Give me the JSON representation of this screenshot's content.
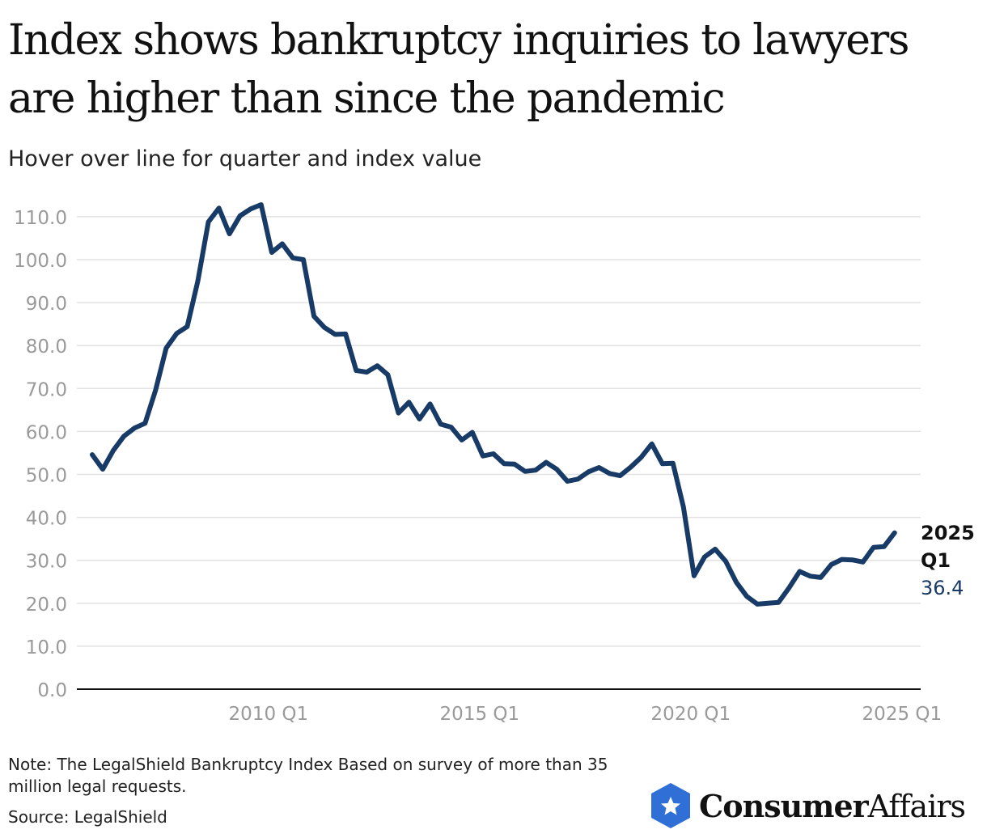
{
  "title": "Index shows bankruptcy inquiries to lawyers are higher than since the pandemic",
  "subtitle": "Hover over line for quarter and index value",
  "note": "Note: The LegalShield Bankruptcy Index Based on survey of more than 35 million legal requests.",
  "source": "Source: LegalShield",
  "logo": {
    "brand_bold": "Consumer",
    "brand_light": "Affairs",
    "icon": "star-shield-icon",
    "icon_color": "#2f6fd6"
  },
  "colors": {
    "line": "#183a66",
    "grid": "#e2e2e2",
    "axis": "#111111",
    "tick": "#9a9a9a"
  },
  "chart_data": {
    "type": "line",
    "title": "Index shows bankruptcy inquiries to lawyers are higher than since the pandemic",
    "xlabel": "",
    "ylabel": "",
    "ylim": [
      0,
      110
    ],
    "yticks": [
      "0.0",
      "10.0",
      "20.0",
      "30.0",
      "40.0",
      "50.0",
      "60.0",
      "70.0",
      "80.0",
      "90.0",
      "100.0",
      "110.0"
    ],
    "xticks": [
      {
        "label": "2010 Q1",
        "index": 17
      },
      {
        "label": "2015 Q1",
        "index": 37
      },
      {
        "label": "2020 Q1",
        "index": 57
      },
      {
        "label": "2025 Q1",
        "index": 77
      }
    ],
    "series": [
      {
        "name": "LegalShield Bankruptcy Index",
        "start": "2006 Q1",
        "end": "2025 Q1",
        "values": [
          54.6,
          51.2,
          55.6,
          58.9,
          60.8,
          61.9,
          69.6,
          79.4,
          82.8,
          84.4,
          95.0,
          108.8,
          112.0,
          106.0,
          110.2,
          111.8,
          112.8,
          101.7,
          103.7,
          100.4,
          100.0,
          86.8,
          84.2,
          82.6,
          82.7,
          74.2,
          73.8,
          75.3,
          73.2,
          64.3,
          66.8,
          62.9,
          66.4,
          61.7,
          61.0,
          58.0,
          59.8,
          54.3,
          54.8,
          52.5,
          52.4,
          50.7,
          51.0,
          52.8,
          51.2,
          48.4,
          48.9,
          50.6,
          51.6,
          50.2,
          49.7,
          51.7,
          54.0,
          57.1,
          52.5,
          52.6,
          42.4,
          26.4,
          30.8,
          32.6,
          29.8,
          24.9,
          21.6,
          19.8,
          20.0,
          20.2,
          23.6,
          27.4,
          26.3,
          26.0,
          29.0,
          30.2,
          30.1,
          29.6,
          33.0,
          33.2,
          36.4
        ]
      }
    ],
    "end_label": {
      "period_line1": "2025",
      "period_line2": "Q1",
      "value": "36.4"
    }
  }
}
